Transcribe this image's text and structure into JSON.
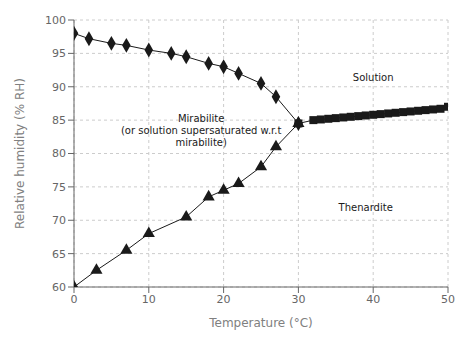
{
  "chart_data": {
    "type": "line",
    "xlabel": "Temperature (°C)",
    "ylabel": "Relative humidity (% RH)",
    "xlim": [
      0,
      50
    ],
    "ylim": [
      60,
      100
    ],
    "xticks": [
      0,
      10,
      20,
      30,
      40,
      50
    ],
    "yticks": [
      60,
      65,
      70,
      75,
      80,
      85,
      90,
      95,
      100
    ],
    "grid": true,
    "color": "#1a1a1a",
    "series": [
      {
        "x": [
          0,
          2,
          5,
          7,
          10,
          13,
          15,
          18,
          20,
          22,
          25,
          27,
          30
        ],
        "values": [
          98,
          97.2,
          96.5,
          96.2,
          95.5,
          95.0,
          94.5,
          93.5,
          93.0,
          92.0,
          90.5,
          88.5,
          84.5
        ],
        "marker": "diamond"
      },
      {
        "x": [
          0,
          3,
          7,
          10,
          15,
          18,
          20,
          22,
          25,
          27,
          30
        ],
        "values": [
          60,
          62.5,
          65.5,
          68,
          70.5,
          73.5,
          74.5,
          75.5,
          78,
          81,
          84.5
        ],
        "marker": "triangle"
      },
      {
        "x": [
          30,
          32,
          33,
          34,
          35,
          36,
          37,
          38,
          39,
          40,
          41,
          42,
          43,
          44,
          45,
          46,
          47,
          48,
          49,
          50
        ],
        "values": [
          84.5,
          85.0,
          85.1,
          85.2,
          85.3,
          85.4,
          85.5,
          85.6,
          85.7,
          85.8,
          85.9,
          86.0,
          86.1,
          86.2,
          86.3,
          86.4,
          86.5,
          86.6,
          86.7,
          87.0
        ],
        "marker": "square"
      }
    ],
    "annotations": [
      {
        "text": "Mirabilite\n(or solution supersaturated w.r.t\nmirabilite)",
        "x": 17,
        "y": 83.5
      },
      {
        "text": "Thenardite",
        "x": 39,
        "y": 72
      },
      {
        "text": "Solution",
        "x": 40,
        "y": 91.5
      }
    ]
  }
}
